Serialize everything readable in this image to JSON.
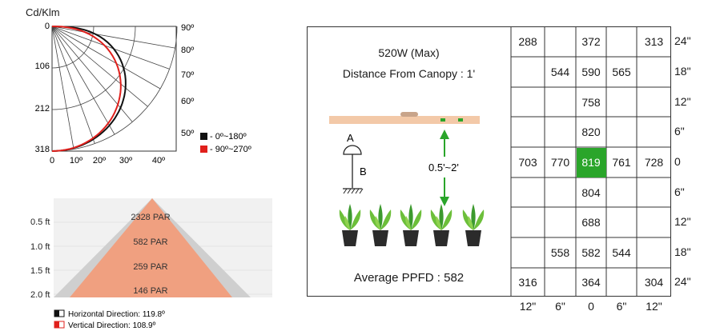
{
  "polar": {
    "unit_label": "Cd/Klm",
    "radial_ticks": [
      "0",
      "106",
      "212",
      "318"
    ],
    "angle_labels_bottom": [
      "0",
      "10º",
      "20º",
      "30º",
      "40º"
    ],
    "angle_labels_right": [
      "90º",
      "80º",
      "70º",
      "60º",
      "50º"
    ],
    "legend": [
      {
        "label": "- 0º~180º",
        "color": "#111111"
      },
      {
        "label": "- 90º~270º",
        "color": "#e0201c"
      }
    ]
  },
  "cone": {
    "rows": [
      {
        "height": "0.5 ft",
        "par": "2328 PAR"
      },
      {
        "height": "1.0 ft",
        "par": "582 PAR"
      },
      {
        "height": "1.5 ft",
        "par": "259 PAR"
      },
      {
        "height": "2.0 ft",
        "par": "146 PAR"
      }
    ],
    "colors": {
      "outer": "#cfcfcf",
      "inner": "#f0a080"
    },
    "legend": [
      {
        "label": "Horizontal Direction:  119.8º",
        "color": "#111111"
      },
      {
        "label": "Vertical Direction:  108.9º",
        "color": "#e0201c"
      }
    ]
  },
  "panel": {
    "power": "520W (Max)",
    "distance": "Distance From Canopy : 1'",
    "label_a": "A",
    "label_b": "B",
    "range": "0.5'~2'",
    "average": "Average PPFD : 582",
    "arrow_color": "#2aa52a"
  },
  "chart_data": {
    "type": "table",
    "title": "520W (Max)",
    "col_labels": [
      "12\"",
      "6\"",
      "0",
      "6\"",
      "12\""
    ],
    "row_labels": [
      "24\"",
      "18\"",
      "12\"",
      "6\"",
      "0",
      "6\"",
      "12\"",
      "18\"",
      "24\""
    ],
    "rows": [
      [
        "288",
        "",
        "372",
        "",
        "313"
      ],
      [
        "",
        "544",
        "590",
        "565",
        ""
      ],
      [
        "",
        "",
        "758",
        "",
        ""
      ],
      [
        "",
        "",
        "820",
        "",
        ""
      ],
      [
        "703",
        "770",
        "819",
        "761",
        "728"
      ],
      [
        "",
        "",
        "804",
        "",
        ""
      ],
      [
        "",
        "",
        "688",
        "",
        ""
      ],
      [
        "",
        "558",
        "582",
        "544",
        ""
      ],
      [
        "316",
        "",
        "364",
        "",
        "304"
      ]
    ],
    "highlight_color": "#2aa52a"
  }
}
